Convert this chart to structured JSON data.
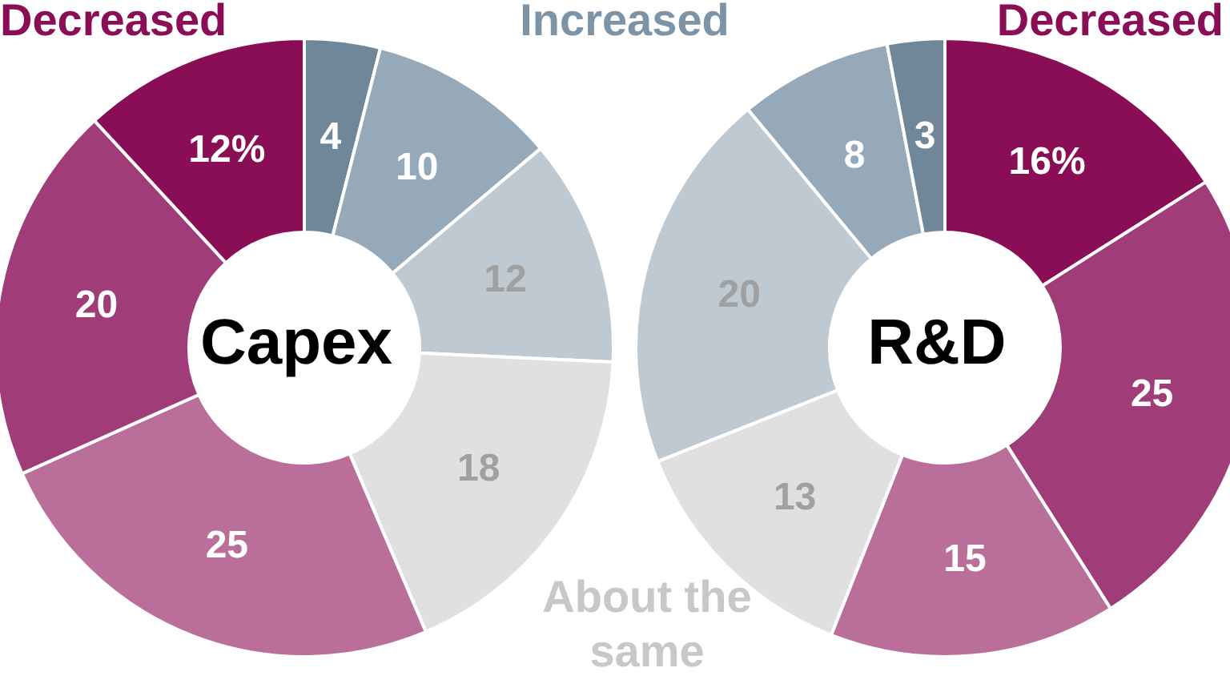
{
  "chart_data": [
    {
      "type": "donut",
      "title": "Capex",
      "categories": [
        null,
        null,
        null,
        null,
        null,
        null,
        null
      ],
      "values": [
        4,
        10,
        12,
        18,
        25,
        20,
        12
      ],
      "colors": [
        "#6f8799",
        "#96a9b8",
        "#bfc9d2",
        "#e0e0e0",
        "#b96f9a",
        "#a03c78",
        "#8a0e55"
      ],
      "value_labels": [
        "4",
        "10",
        "12",
        "18",
        "25",
        "20",
        "12%"
      ],
      "annotations": [
        "Decreased",
        "Increased"
      ]
    },
    {
      "type": "donut",
      "title": "R&D",
      "categories": [
        null,
        null,
        null,
        null,
        null,
        null,
        null
      ],
      "values": [
        16,
        25,
        15,
        13,
        20,
        8,
        3
      ],
      "colors": [
        "#8a0e55",
        "#a03c78",
        "#b96f9a",
        "#e0e0e0",
        "#bfc9d2",
        "#96a9b8",
        "#6f8799"
      ],
      "value_labels": [
        "16%",
        "25",
        "15",
        "13",
        "20",
        "8",
        "3"
      ],
      "annotations": [
        "Decreased",
        "About the same"
      ]
    }
  ]
}
